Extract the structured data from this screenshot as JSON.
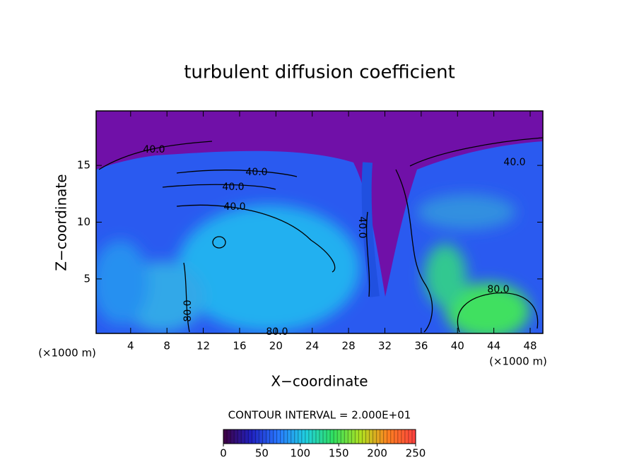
{
  "chart_data": {
    "type": "contour",
    "title": "turbulent diffusion coefficient",
    "x_label": "X−coordinate",
    "y_label": "Z−coordinate",
    "x_unit_left": "(×1000 m)",
    "x_unit_right": "(×1000 m)",
    "contour_interval_label": "CONTOUR INTERVAL = 2.000E+01",
    "xlim": [
      0.2,
      49.4
    ],
    "xticks": [
      4,
      8,
      12,
      16,
      20,
      24,
      28,
      32,
      36,
      40,
      44,
      48
    ],
    "ylim": [
      0.2,
      19.8
    ],
    "yticks": [
      5,
      10,
      15
    ],
    "contour_labels": [
      "40.0",
      "40.0",
      "40.0",
      "40.0",
      "40.0",
      "80.0",
      "80.0",
      "80.0",
      "40.0"
    ],
    "colorbar": {
      "lim": [
        0,
        250
      ],
      "ticks": [
        0,
        50,
        100,
        150,
        200,
        250
      ],
      "colors": [
        "#400040",
        "#2020c0",
        "#2878ff",
        "#20d0e0",
        "#30e060",
        "#b0e020",
        "#ff8020",
        "#ff4040"
      ]
    }
  }
}
